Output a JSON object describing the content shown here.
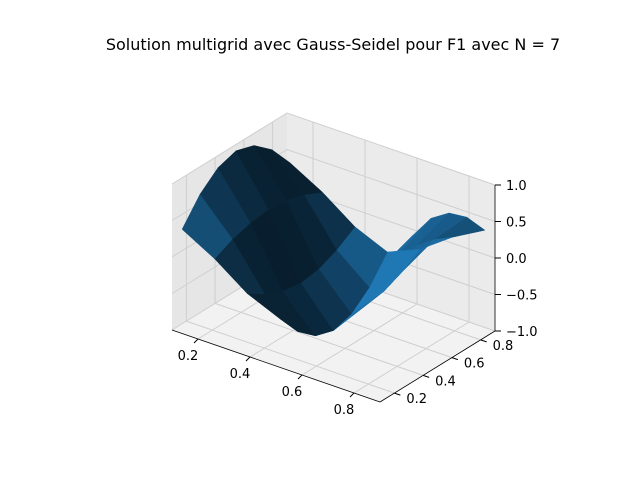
{
  "chart_data": {
    "type": "surface",
    "title": "Solution multigrid avec Gauss-Seidel pour F1 avec N = 7",
    "xlabel": "",
    "ylabel": "",
    "zlabel": "",
    "x": [
      0.125,
      0.25,
      0.375,
      0.5,
      0.625,
      0.75,
      0.875
    ],
    "y": [
      0.125,
      0.25,
      0.375,
      0.5,
      0.625,
      0.75,
      0.875
    ],
    "z_formula_note": "",
    "xlim": [
      0.1,
      0.9
    ],
    "ylim": [
      0.1,
      0.9
    ],
    "zlim": [
      -1.0,
      1.0
    ],
    "xticks": [
      "0.2",
      "0.4",
      "0.6",
      "0.8"
    ],
    "yticks": [
      "0.2",
      "0.4",
      "0.6",
      "0.8"
    ],
    "zticks": [
      "1.0",
      "0.5",
      "0.0",
      "−0.5",
      "−1.0"
    ],
    "z": [
      [
        0.38,
        0.71,
        0.92,
        1.0,
        0.92,
        0.71,
        0.38
      ],
      [
        0.13,
        0.25,
        0.32,
        0.35,
        0.32,
        0.25,
        0.13
      ],
      [
        -0.19,
        -0.35,
        -0.46,
        -0.5,
        -0.46,
        -0.35,
        -0.19
      ],
      [
        -0.38,
        -0.71,
        -0.92,
        -1.0,
        -0.92,
        -0.71,
        -0.38
      ],
      [
        -0.19,
        -0.35,
        -0.46,
        -0.5,
        -0.46,
        -0.35,
        -0.19
      ],
      [
        0.13,
        0.25,
        0.32,
        0.35,
        0.32,
        0.25,
        0.13
      ],
      [
        0.38,
        0.71,
        0.92,
        1.0,
        0.92,
        0.71,
        0.38
      ]
    ],
    "surface_color": "#1f77b4",
    "grid": true,
    "legend": false
  }
}
